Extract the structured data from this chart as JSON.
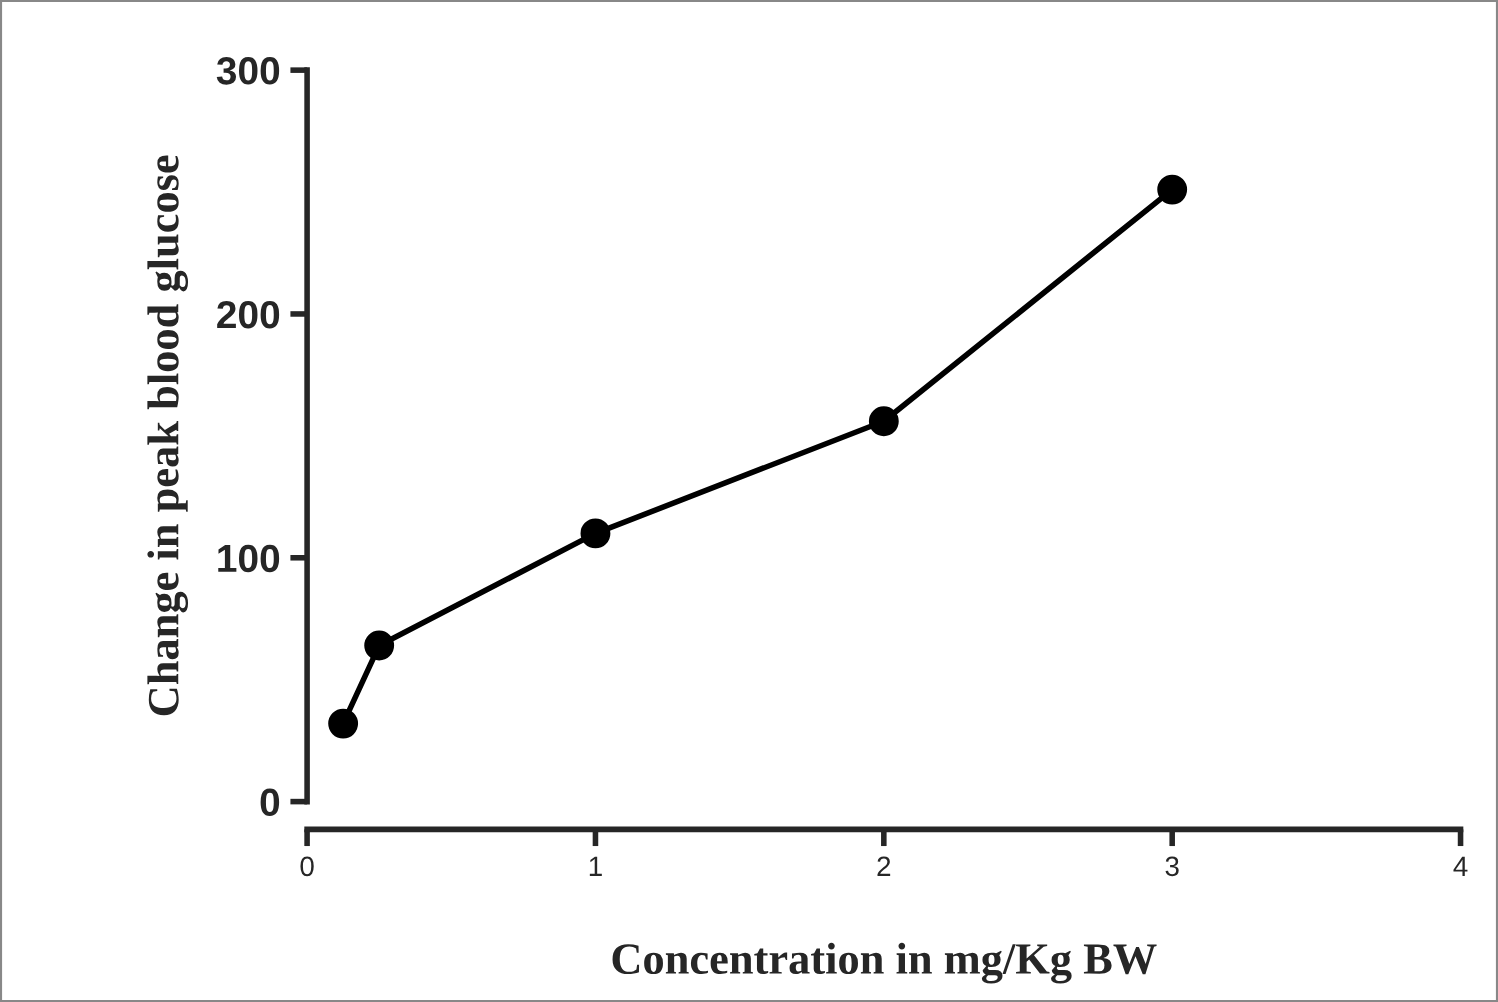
{
  "chart_data": {
    "type": "line",
    "xlabel": "Concentration in mg/Kg BW",
    "ylabel": "Change in peak blood glucose",
    "x": [
      0.125,
      0.25,
      1,
      2,
      3
    ],
    "series": [
      {
        "color": "#000000",
        "values": [
          32,
          64,
          110,
          156,
          251
        ]
      }
    ],
    "xlim": [
      0,
      4
    ],
    "xticks": [
      0,
      1,
      2,
      3,
      4
    ],
    "ylim": [
      0,
      300
    ],
    "yticks": [
      0,
      100,
      200,
      300
    ],
    "marker": "circle",
    "line_style": "solid",
    "grid": false,
    "legend": false
  }
}
